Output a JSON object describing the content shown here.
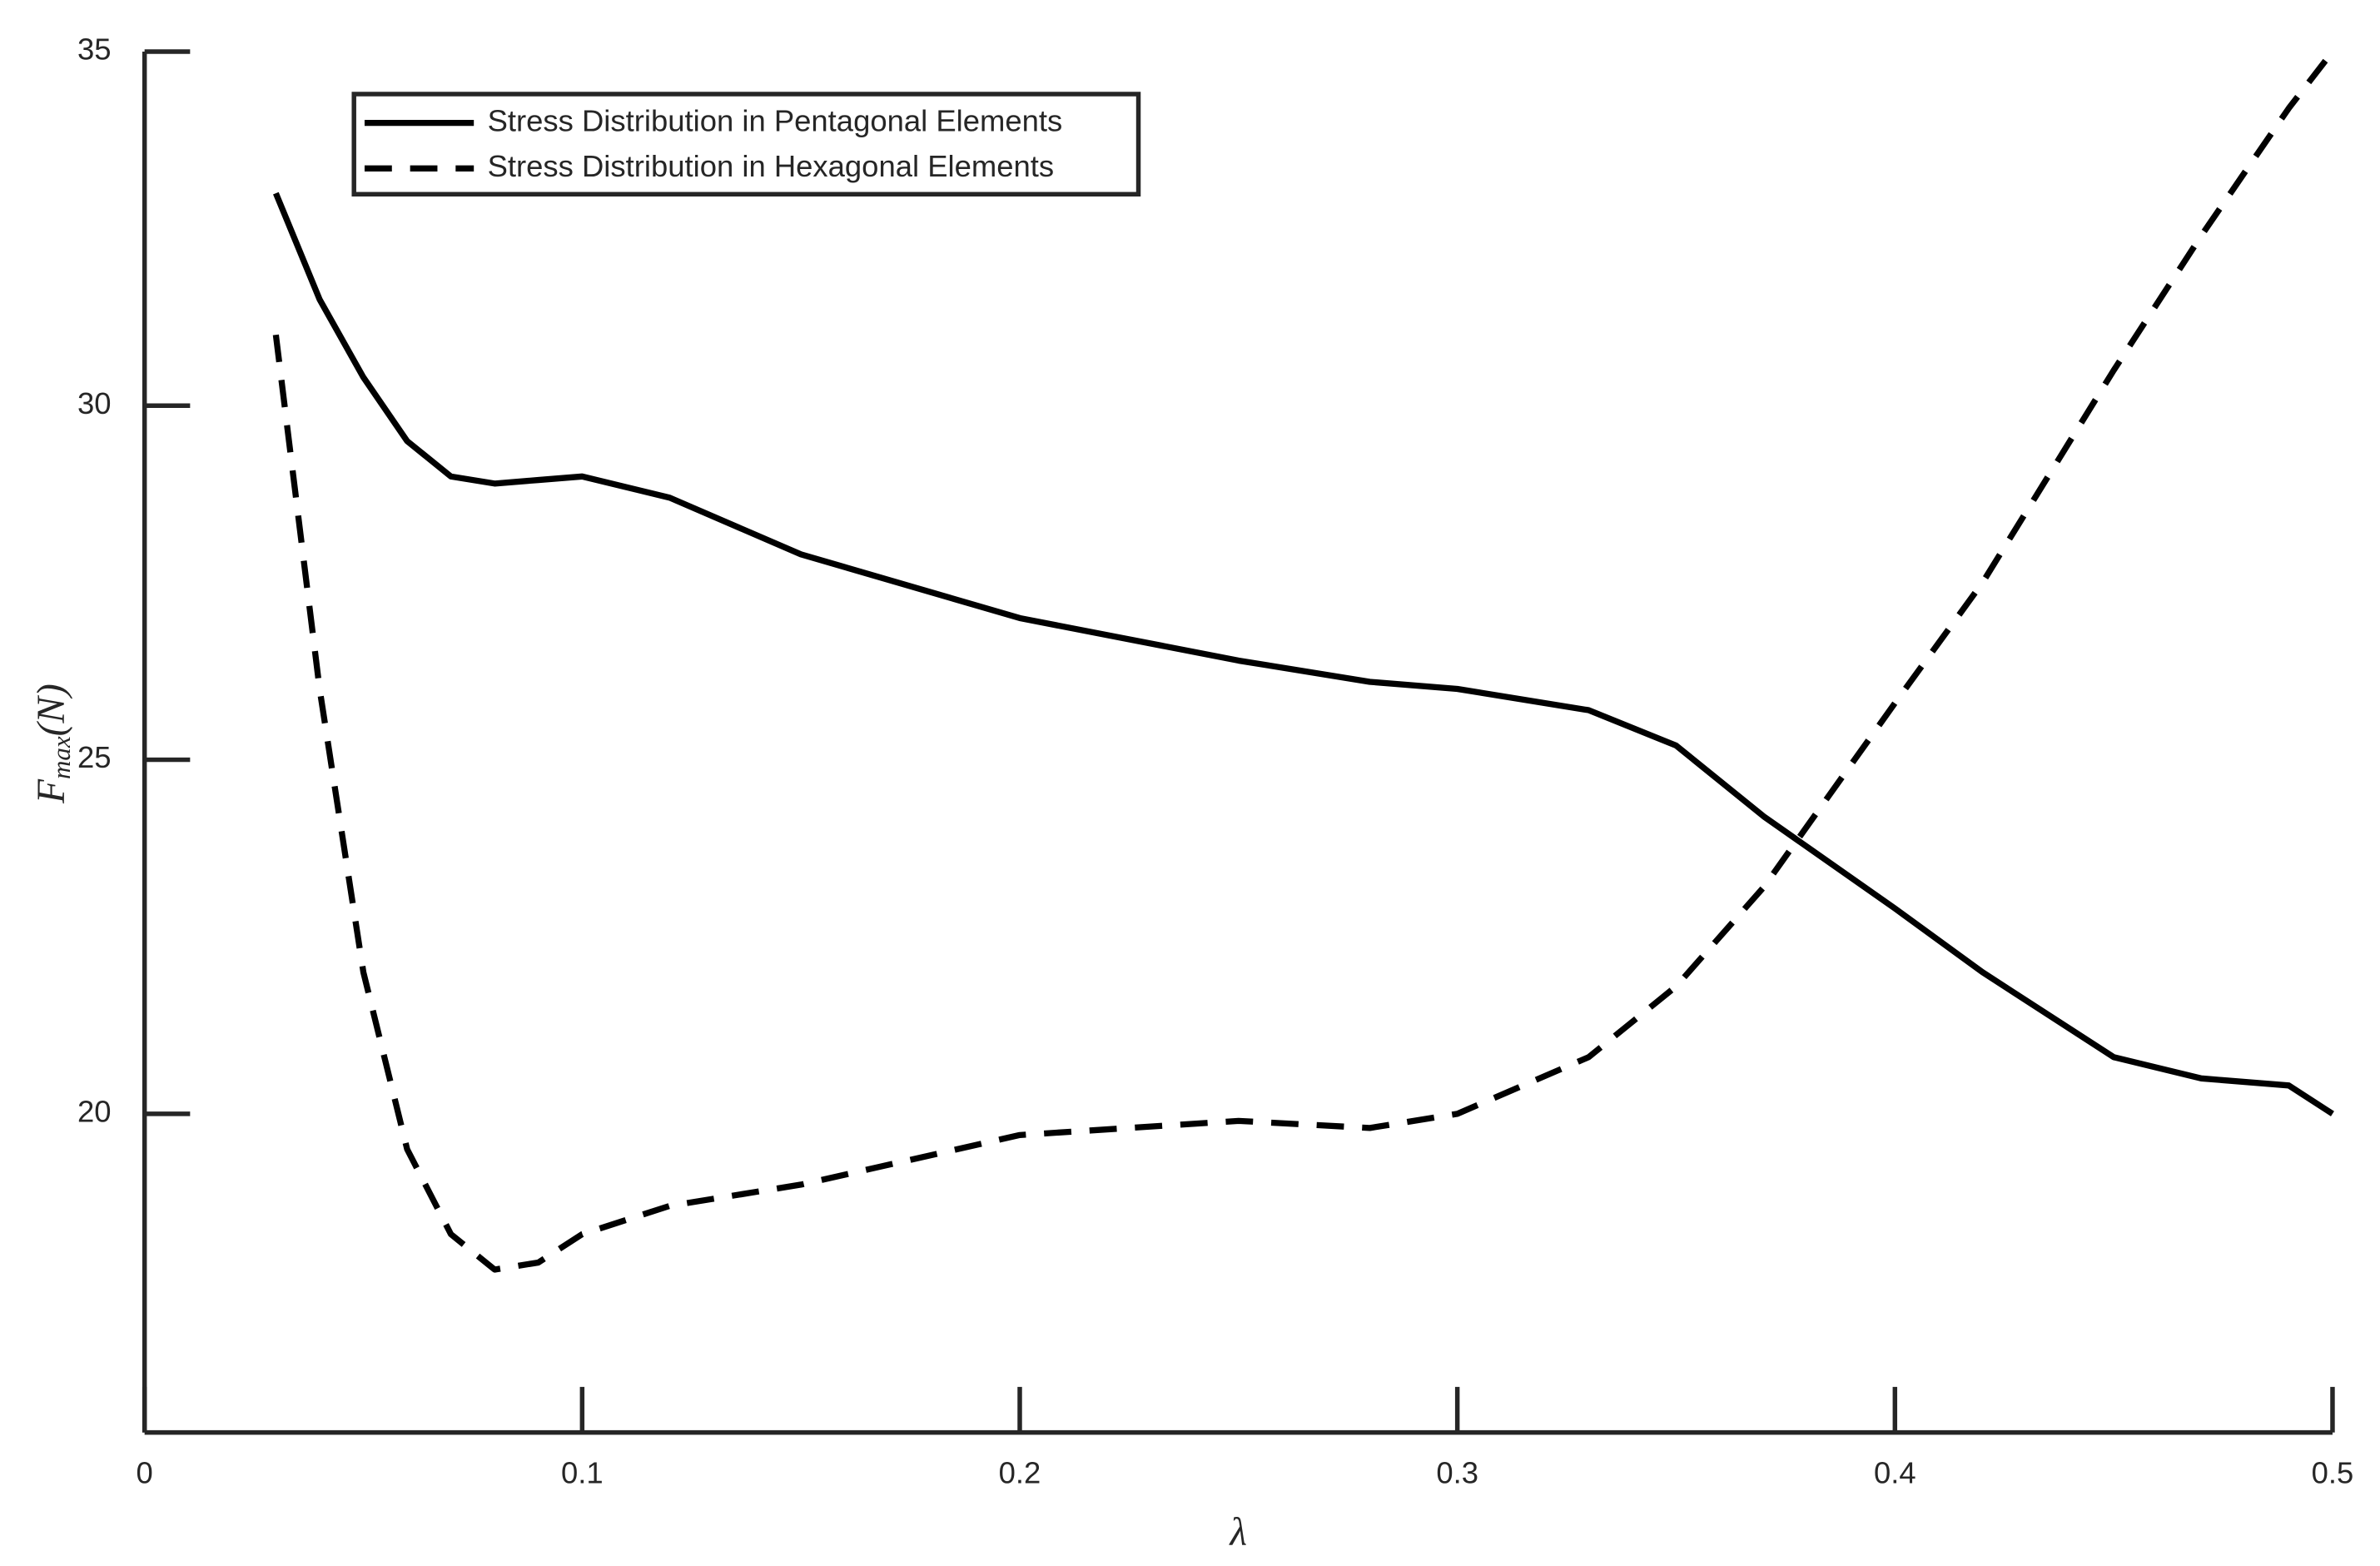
{
  "chart_data": {
    "type": "line",
    "xlabel": "λ",
    "ylabel": {
      "base": "F",
      "sub": "max",
      "rest": "(N)"
    },
    "x": [
      0.03,
      0.04,
      0.05,
      0.06,
      0.07,
      0.08,
      0.09,
      0.1,
      0.12,
      0.15,
      0.2,
      0.25,
      0.28,
      0.3,
      0.33,
      0.35,
      0.37,
      0.4,
      0.42,
      0.45,
      0.47,
      0.49,
      0.5
    ],
    "series": [
      {
        "name": "Stress Distribution in Pentagonal Elements",
        "color": "#000000",
        "dash": "solid",
        "values": [
          33,
          31.5,
          30.4,
          29.5,
          29.0,
          28.9,
          28.95,
          29.0,
          28.7,
          27.9,
          27.0,
          26.4,
          26.1,
          26.0,
          25.7,
          25.2,
          24.2,
          22.9,
          22.0,
          20.8,
          20.5,
          20.4,
          20.0
        ]
      },
      {
        "name": "Stress Distribution in Hexagonal Elements",
        "color": "#000000",
        "dash": "dashed",
        "values": [
          31,
          26,
          22,
          19.5,
          18.3,
          17.8,
          17.9,
          18.3,
          18.7,
          19.0,
          19.7,
          19.9,
          19.8,
          20.0,
          20.8,
          21.8,
          23.2,
          25.8,
          27.5,
          30.5,
          32.4,
          34.2,
          35
        ]
      }
    ],
    "xlim": [
      0,
      0.5
    ],
    "xticks": [
      0,
      0.1,
      0.2,
      0.3,
      0.4,
      0.5
    ],
    "ylim": [
      15.5,
      35
    ],
    "yticks": [
      20,
      25,
      30,
      35
    ],
    "grid": false,
    "legend": "upper left"
  }
}
